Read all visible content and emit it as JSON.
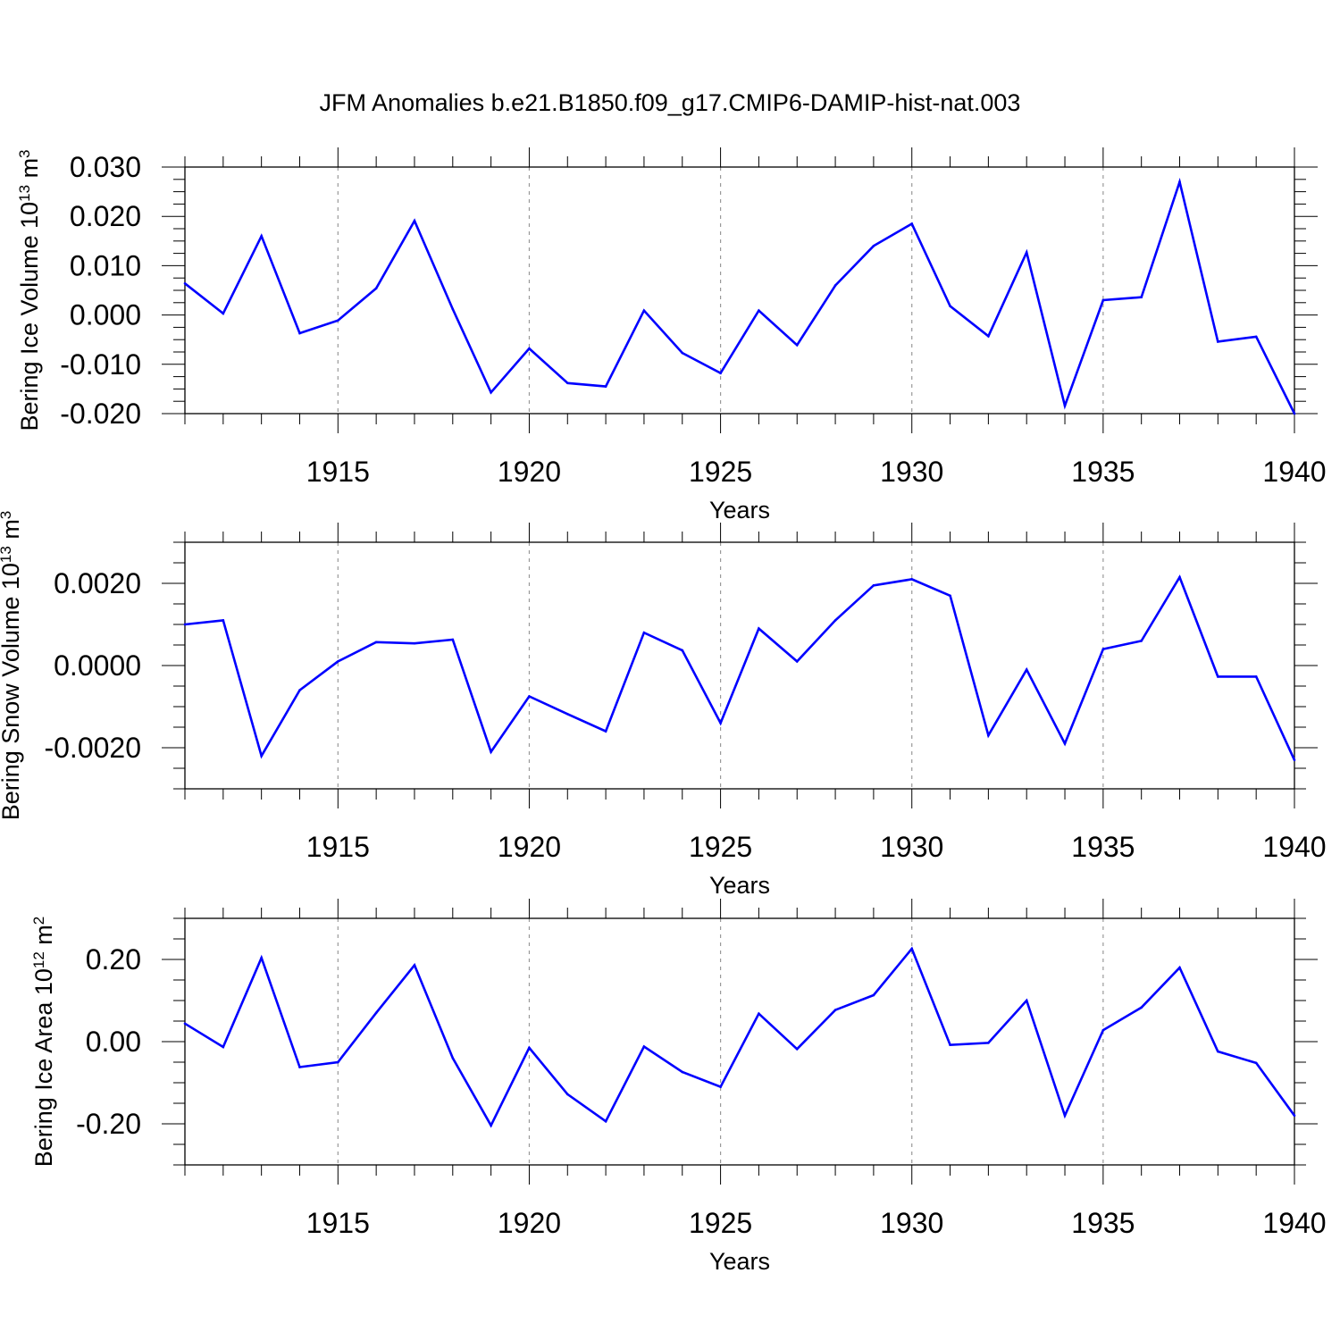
{
  "title": "JFM Anomalies b.e21.B1850.f09_g17.CMIP6-DAMIP-hist-nat.003",
  "colors": {
    "line": "#0000ff",
    "grid": "#999999",
    "axis": "#000000"
  },
  "chart_data": [
    {
      "type": "line",
      "ylabel": {
        "text": "Bering Ice Volume 10",
        "sup1": "13",
        "mid": " m",
        "sup2": "3"
      },
      "xlabel": "Years",
      "xlim": [
        1911,
        1940
      ],
      "ylim": [
        -0.02,
        0.03
      ],
      "yticks": [
        -0.02,
        -0.01,
        0.0,
        0.01,
        0.02,
        0.03
      ],
      "ytick_labels": [
        "-0.020",
        "-0.010",
        "0.000",
        "0.010",
        "0.020",
        "0.030"
      ],
      "xticks": [
        1915,
        1920,
        1925,
        1930,
        1935,
        1940
      ],
      "xtick_labels": [
        "1915",
        "1920",
        "1925",
        "1930",
        "1935",
        "1940"
      ],
      "grid": "vertical dashed at major x ticks",
      "x": [
        1911,
        1912,
        1913,
        1914,
        1915,
        1916,
        1917,
        1918,
        1919,
        1920,
        1921,
        1922,
        1923,
        1924,
        1925,
        1926,
        1927,
        1928,
        1929,
        1930,
        1931,
        1932,
        1933,
        1934,
        1935,
        1936,
        1937,
        1938,
        1939,
        1940
      ],
      "values": [
        0.0064,
        0.0003,
        0.016,
        -0.0037,
        -0.0011,
        0.0054,
        0.0191,
        0.0012,
        -0.0157,
        -0.0068,
        -0.0138,
        -0.0145,
        0.0009,
        -0.0077,
        -0.0118,
        0.0009,
        -0.0061,
        0.006,
        0.014,
        0.0185,
        0.0018,
        -0.0043,
        0.0127,
        -0.0184,
        0.003,
        0.0036,
        0.027,
        -0.0054,
        -0.0044,
        -0.02
      ]
    },
    {
      "type": "line",
      "ylabel": {
        "text": "Bering Snow Volume 10",
        "sup1": "13",
        "mid": " m",
        "sup2": "3"
      },
      "xlabel": "Years",
      "xlim": [
        1911,
        1940
      ],
      "ylim": [
        -0.003,
        0.003
      ],
      "yticks": [
        -0.002,
        0.0,
        0.002
      ],
      "ytick_labels": [
        "-0.0020",
        "0.0000",
        "0.0020"
      ],
      "xticks": [
        1915,
        1920,
        1925,
        1930,
        1935,
        1940
      ],
      "xtick_labels": [
        "1915",
        "1920",
        "1925",
        "1930",
        "1935",
        "1940"
      ],
      "grid": "vertical dashed at major x ticks",
      "x": [
        1911,
        1912,
        1913,
        1914,
        1915,
        1916,
        1917,
        1918,
        1919,
        1920,
        1921,
        1922,
        1923,
        1924,
        1925,
        1926,
        1927,
        1928,
        1929,
        1930,
        1931,
        1932,
        1933,
        1934,
        1935,
        1936,
        1937,
        1938,
        1939,
        1940
      ],
      "values": [
        0.001,
        0.0011,
        -0.0022,
        -0.0006,
        0.0001,
        0.00057,
        0.00054,
        0.00063,
        -0.0021,
        -0.00075,
        -0.00118,
        -0.0016,
        0.0008,
        0.00037,
        -0.0014,
        0.0009,
        0.0001,
        0.0011,
        0.00195,
        0.0021,
        0.0017,
        -0.0017,
        -0.0001,
        -0.0019,
        0.0004,
        0.0006,
        0.00215,
        -0.00027,
        -0.00027,
        -0.0023
      ]
    },
    {
      "type": "line",
      "ylabel": {
        "text": "Bering Ice Area 10",
        "sup1": "12",
        "mid": " m",
        "sup2": "2"
      },
      "xlabel": "Years",
      "xlim": [
        1911,
        1940
      ],
      "ylim": [
        -0.3,
        0.3
      ],
      "yticks": [
        -0.2,
        0.0,
        0.2
      ],
      "ytick_labels": [
        "-0.20",
        "0.00",
        "0.20"
      ],
      "xticks": [
        1915,
        1920,
        1925,
        1930,
        1935,
        1940
      ],
      "xtick_labels": [
        "1915",
        "1920",
        "1925",
        "1930",
        "1935",
        "1940"
      ],
      "grid": "vertical dashed at major x ticks",
      "x": [
        1911,
        1912,
        1913,
        1914,
        1915,
        1916,
        1917,
        1918,
        1919,
        1920,
        1921,
        1922,
        1923,
        1924,
        1925,
        1926,
        1927,
        1928,
        1929,
        1930,
        1931,
        1932,
        1933,
        1934,
        1935,
        1936,
        1937,
        1938,
        1939,
        1940
      ],
      "values": [
        0.044,
        -0.013,
        0.204,
        -0.062,
        -0.05,
        0.07,
        0.186,
        -0.04,
        -0.204,
        -0.015,
        -0.128,
        -0.194,
        -0.012,
        -0.074,
        -0.11,
        0.068,
        -0.018,
        0.077,
        0.113,
        0.226,
        -0.008,
        -0.003,
        0.1,
        -0.18,
        0.028,
        0.083,
        0.18,
        -0.024,
        -0.052,
        -0.18
      ]
    }
  ]
}
